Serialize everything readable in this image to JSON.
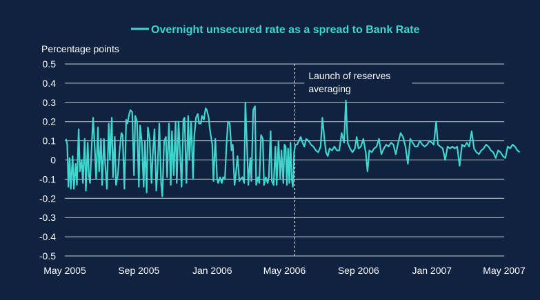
{
  "chart_data": {
    "type": "line",
    "title": "",
    "ylabel": "Percentage points",
    "xlabel": "",
    "ylim": [
      -0.5,
      0.5
    ],
    "y_ticks": [
      "0.5",
      "0.4",
      "0.3",
      "0.2",
      "0.1",
      "0",
      "-0.1",
      "-0.2",
      "-0.3",
      "-0.4",
      "-0.5"
    ],
    "y_tick_values": [
      0.5,
      0.4,
      0.3,
      0.2,
      0.1,
      0,
      -0.1,
      -0.2,
      -0.3,
      -0.4,
      -0.5
    ],
    "x_ticks": [
      "May 2005",
      "Sep 2005",
      "Jan 2006",
      "May 2006",
      "Sep 2006",
      "Jan 2007",
      "May 2007"
    ],
    "x_tick_dates": [
      "2005-05-01",
      "2005-09-01",
      "2006-01-01",
      "2006-05-01",
      "2006-09-01",
      "2007-01-01",
      "2007-05-01"
    ],
    "xlim": [
      "2005-05-01",
      "2007-05-01"
    ],
    "grid": true,
    "legend_position": "top-center",
    "colors": {
      "series": "#3fd6d0",
      "background": "#0f2240",
      "grid": "#c9d1dc",
      "text": "#ffffff"
    },
    "annotation": {
      "lines": [
        "Launch of reserves",
        "averaging"
      ],
      "date": "2006-05-18"
    },
    "series": [
      {
        "name": "Overnight unsecured rate as a spread to Bank Rate",
        "points": [
          [
            "2005-05-03",
            0.11
          ],
          [
            "2005-05-05",
            0.08
          ],
          [
            "2005-05-07",
            -0.14
          ],
          [
            "2005-05-09",
            0.01
          ],
          [
            "2005-05-11",
            -0.15
          ],
          [
            "2005-05-14",
            0.02
          ],
          [
            "2005-05-16",
            -0.15
          ],
          [
            "2005-05-19",
            -0.02
          ],
          [
            "2005-05-21",
            -0.13
          ],
          [
            "2005-05-24",
            0.16
          ],
          [
            "2005-05-26",
            -0.06
          ],
          [
            "2005-05-29",
            0.0
          ],
          [
            "2005-05-31",
            -0.12
          ],
          [
            "2005-06-03",
            0.11
          ],
          [
            "2005-06-05",
            -0.16
          ],
          [
            "2005-06-08",
            0.09
          ],
          [
            "2005-06-10",
            -0.08
          ],
          [
            "2005-06-12",
            -0.12
          ],
          [
            "2005-06-15",
            0.1
          ],
          [
            "2005-06-17",
            0.22
          ],
          [
            "2005-06-20",
            0.05
          ],
          [
            "2005-06-22",
            -0.1
          ],
          [
            "2005-06-25",
            0.17
          ],
          [
            "2005-06-27",
            -0.06
          ],
          [
            "2005-06-30",
            0.11
          ],
          [
            "2005-07-02",
            -0.13
          ],
          [
            "2005-07-05",
            0.11
          ],
          [
            "2005-07-07",
            -0.02
          ],
          [
            "2005-07-10",
            -0.15
          ],
          [
            "2005-07-13",
            0.19
          ],
          [
            "2005-07-15",
            0.0
          ],
          [
            "2005-07-18",
            0.22
          ],
          [
            "2005-07-20",
            -0.09
          ],
          [
            "2005-07-23",
            0.12
          ],
          [
            "2005-07-25",
            -0.13
          ],
          [
            "2005-07-28",
            -0.08
          ],
          [
            "2005-07-31",
            0.05
          ],
          [
            "2005-08-03",
            0.14
          ],
          [
            "2005-08-05",
            0.13
          ],
          [
            "2005-08-08",
            -0.15
          ],
          [
            "2005-08-11",
            0.21
          ],
          [
            "2005-08-13",
            0.19
          ],
          [
            "2005-08-16",
            0.24
          ],
          [
            "2005-08-18",
            0.26
          ],
          [
            "2005-08-21",
            0.25
          ],
          [
            "2005-08-24",
            -0.08
          ],
          [
            "2005-08-26",
            0.23
          ],
          [
            "2005-08-29",
            0.2
          ],
          [
            "2005-09-01",
            -0.14
          ],
          [
            "2005-09-03",
            0.18
          ],
          [
            "2005-09-06",
            0.09
          ],
          [
            "2005-09-09",
            -0.14
          ],
          [
            "2005-09-11",
            0.1
          ],
          [
            "2005-09-14",
            -0.17
          ],
          [
            "2005-09-16",
            0.17
          ],
          [
            "2005-09-19",
            0.11
          ],
          [
            "2005-09-22",
            -0.12
          ],
          [
            "2005-09-24",
            0.02
          ],
          [
            "2005-09-27",
            0.16
          ],
          [
            "2005-09-30",
            -0.16
          ],
          [
            "2005-10-02",
            -0.05
          ],
          [
            "2005-10-05",
            0.19
          ],
          [
            "2005-10-08",
            -0.12
          ],
          [
            "2005-10-10",
            -0.19
          ],
          [
            "2005-10-13",
            0.1
          ],
          [
            "2005-10-16",
            0.12
          ],
          [
            "2005-10-18",
            -0.09
          ],
          [
            "2005-10-21",
            0.19
          ],
          [
            "2005-10-24",
            -0.13
          ],
          [
            "2005-10-26",
            0.15
          ],
          [
            "2005-10-29",
            -0.08
          ],
          [
            "2005-11-01",
            0.2
          ],
          [
            "2005-11-03",
            -0.12
          ],
          [
            "2005-11-06",
            0.2
          ],
          [
            "2005-11-09",
            0.01
          ],
          [
            "2005-11-11",
            -0.14
          ],
          [
            "2005-11-14",
            0.21
          ],
          [
            "2005-11-16",
            0.22
          ],
          [
            "2005-11-19",
            -0.12
          ],
          [
            "2005-11-22",
            0.23
          ],
          [
            "2005-11-24",
            0.0
          ],
          [
            "2005-11-27",
            0.2
          ],
          [
            "2005-11-30",
            -0.1
          ],
          [
            "2005-12-02",
            0.12
          ],
          [
            "2005-12-05",
            0.22
          ],
          [
            "2005-12-08",
            0.24
          ],
          [
            "2005-12-10",
            0.19
          ],
          [
            "2005-12-13",
            0.19
          ],
          [
            "2005-12-15",
            0.23
          ],
          [
            "2005-12-18",
            0.21
          ],
          [
            "2005-12-21",
            0.27
          ],
          [
            "2005-12-23",
            0.26
          ],
          [
            "2005-12-26",
            0.22
          ],
          [
            "2005-12-28",
            0.16
          ],
          [
            "2006-01-01",
            0.08
          ],
          [
            "2006-01-03",
            -0.11
          ],
          [
            "2006-01-06",
            0.11
          ],
          [
            "2006-01-09",
            -0.1
          ],
          [
            "2006-01-11",
            -0.12
          ],
          [
            "2006-01-14",
            -0.09
          ],
          [
            "2006-01-17",
            -0.12
          ],
          [
            "2006-01-19",
            -0.09
          ],
          [
            "2006-01-22",
            -0.1
          ],
          [
            "2006-01-24",
            0.04
          ],
          [
            "2006-01-27",
            0.2
          ],
          [
            "2006-01-30",
            0.19
          ],
          [
            "2006-02-02",
            0.05
          ],
          [
            "2006-02-04",
            0.08
          ],
          [
            "2006-02-07",
            -0.13
          ],
          [
            "2006-02-09",
            -0.08
          ],
          [
            "2006-02-12",
            0.02
          ],
          [
            "2006-02-15",
            -0.11
          ],
          [
            "2006-02-17",
            -0.1
          ],
          [
            "2006-02-20",
            -0.09
          ],
          [
            "2006-02-23",
            -0.12
          ],
          [
            "2006-02-25",
            0.3
          ],
          [
            "2006-02-28",
            0.05
          ],
          [
            "2006-03-02",
            -0.13
          ],
          [
            "2006-03-05",
            0.01
          ],
          [
            "2006-03-07",
            -0.11
          ],
          [
            "2006-03-10",
            0.26
          ],
          [
            "2006-03-13",
            0.28
          ],
          [
            "2006-03-15",
            -0.13
          ],
          [
            "2006-03-18",
            -0.09
          ],
          [
            "2006-03-20",
            -0.12
          ],
          [
            "2006-03-23",
            0.13
          ],
          [
            "2006-03-26",
            0.11
          ],
          [
            "2006-03-28",
            -0.13
          ],
          [
            "2006-03-31",
            -0.09
          ],
          [
            "2006-04-03",
            -0.12
          ],
          [
            "2006-04-05",
            -0.09
          ],
          [
            "2006-04-08",
            0.15
          ],
          [
            "2006-04-10",
            -0.11
          ],
          [
            "2006-04-13",
            -0.13
          ],
          [
            "2006-04-16",
            0.07
          ],
          [
            "2006-04-18",
            -0.13
          ],
          [
            "2006-04-21",
            0.1
          ],
          [
            "2006-04-24",
            -0.1
          ],
          [
            "2006-04-26",
            0.05
          ],
          [
            "2006-04-29",
            -0.12
          ],
          [
            "2006-05-01",
            0.08
          ],
          [
            "2006-05-03",
            0.07
          ],
          [
            "2006-05-05",
            -0.13
          ],
          [
            "2006-05-07",
            0.06
          ],
          [
            "2006-05-09",
            -0.12
          ],
          [
            "2006-05-11",
            0.09
          ],
          [
            "2006-05-13",
            -0.1
          ],
          [
            "2006-05-15",
            -0.14
          ],
          [
            "2006-05-17",
            0.04
          ],
          [
            "2006-05-19",
            0.08
          ],
          [
            "2006-05-22",
            0.08
          ],
          [
            "2006-05-25",
            0.1
          ],
          [
            "2006-05-28",
            0.12
          ],
          [
            "2006-05-31",
            0.09
          ],
          [
            "2006-06-03",
            0.07
          ],
          [
            "2006-06-06",
            0.11
          ],
          [
            "2006-06-10",
            0.1
          ],
          [
            "2006-06-14",
            0.08
          ],
          [
            "2006-06-18",
            0.07
          ],
          [
            "2006-06-22",
            0.05
          ],
          [
            "2006-06-26",
            0.04
          ],
          [
            "2006-06-30",
            0.07
          ],
          [
            "2006-07-03",
            0.22
          ],
          [
            "2006-07-06",
            0.12
          ],
          [
            "2006-07-09",
            0.04
          ],
          [
            "2006-07-12",
            0.02
          ],
          [
            "2006-07-15",
            0.06
          ],
          [
            "2006-07-19",
            0.05
          ],
          [
            "2006-07-23",
            0.07
          ],
          [
            "2006-07-27",
            0.05
          ],
          [
            "2006-07-31",
            0.05
          ],
          [
            "2006-08-04",
            0.14
          ],
          [
            "2006-08-08",
            0.09
          ],
          [
            "2006-08-11",
            0.31
          ],
          [
            "2006-08-14",
            0.09
          ],
          [
            "2006-08-18",
            0.06
          ],
          [
            "2006-08-22",
            0.04
          ],
          [
            "2006-08-26",
            0.06
          ],
          [
            "2006-08-29",
            0.12
          ],
          [
            "2006-09-01",
            0.06
          ],
          [
            "2006-09-05",
            0.07
          ],
          [
            "2006-09-09",
            0.11
          ],
          [
            "2006-09-13",
            0.04
          ],
          [
            "2006-09-16",
            -0.06
          ],
          [
            "2006-09-19",
            0.05
          ],
          [
            "2006-09-23",
            0.04
          ],
          [
            "2006-09-27",
            0.06
          ],
          [
            "2006-10-01",
            0.07
          ],
          [
            "2006-10-05",
            0.11
          ],
          [
            "2006-10-09",
            0.03
          ],
          [
            "2006-10-13",
            0.06
          ],
          [
            "2006-10-17",
            0.08
          ],
          [
            "2006-10-21",
            0.07
          ],
          [
            "2006-10-25",
            0.09
          ],
          [
            "2006-10-29",
            0.08
          ],
          [
            "2006-11-02",
            0.03
          ],
          [
            "2006-11-06",
            0.09
          ],
          [
            "2006-11-10",
            0.14
          ],
          [
            "2006-11-14",
            0.12
          ],
          [
            "2006-11-18",
            0.07
          ],
          [
            "2006-11-22",
            -0.02
          ],
          [
            "2006-11-26",
            0.11
          ],
          [
            "2006-11-30",
            0.09
          ],
          [
            "2006-12-04",
            0.07
          ],
          [
            "2006-12-08",
            0.07
          ],
          [
            "2006-12-12",
            0.1
          ],
          [
            "2006-12-16",
            0.08
          ],
          [
            "2006-12-20",
            0.07
          ],
          [
            "2006-12-24",
            0.08
          ],
          [
            "2006-12-28",
            0.1
          ],
          [
            "2007-01-01",
            0.09
          ],
          [
            "2007-01-04",
            0.08
          ],
          [
            "2007-01-08",
            0.2
          ],
          [
            "2007-01-11",
            0.08
          ],
          [
            "2007-01-15",
            0.07
          ],
          [
            "2007-01-19",
            0.06
          ],
          [
            "2007-01-23",
            0.0
          ],
          [
            "2007-01-27",
            0.07
          ],
          [
            "2007-01-31",
            0.06
          ],
          [
            "2007-02-04",
            0.07
          ],
          [
            "2007-02-08",
            0.06
          ],
          [
            "2007-02-12",
            0.07
          ],
          [
            "2007-02-16",
            -0.03
          ],
          [
            "2007-02-20",
            0.08
          ],
          [
            "2007-02-24",
            0.07
          ],
          [
            "2007-02-28",
            0.09
          ],
          [
            "2007-03-04",
            0.07
          ],
          [
            "2007-03-08",
            0.15
          ],
          [
            "2007-03-12",
            0.06
          ],
          [
            "2007-03-16",
            0.04
          ],
          [
            "2007-03-20",
            0.03
          ],
          [
            "2007-03-24",
            0.05
          ],
          [
            "2007-03-28",
            0.06
          ],
          [
            "2007-04-01",
            0.08
          ],
          [
            "2007-04-05",
            0.07
          ],
          [
            "2007-04-09",
            0.05
          ],
          [
            "2007-04-13",
            0.04
          ],
          [
            "2007-04-17",
            0.01
          ],
          [
            "2007-04-21",
            0.05
          ],
          [
            "2007-04-25",
            0.04
          ],
          [
            "2007-04-29",
            0.02
          ],
          [
            "2007-05-03",
            0.01
          ],
          [
            "2007-05-07",
            0.07
          ],
          [
            "2007-05-11",
            0.06
          ],
          [
            "2007-05-15",
            0.08
          ],
          [
            "2007-05-19",
            0.07
          ],
          [
            "2007-05-23",
            0.05
          ],
          [
            "2007-05-27",
            0.04
          ]
        ]
      }
    ]
  }
}
